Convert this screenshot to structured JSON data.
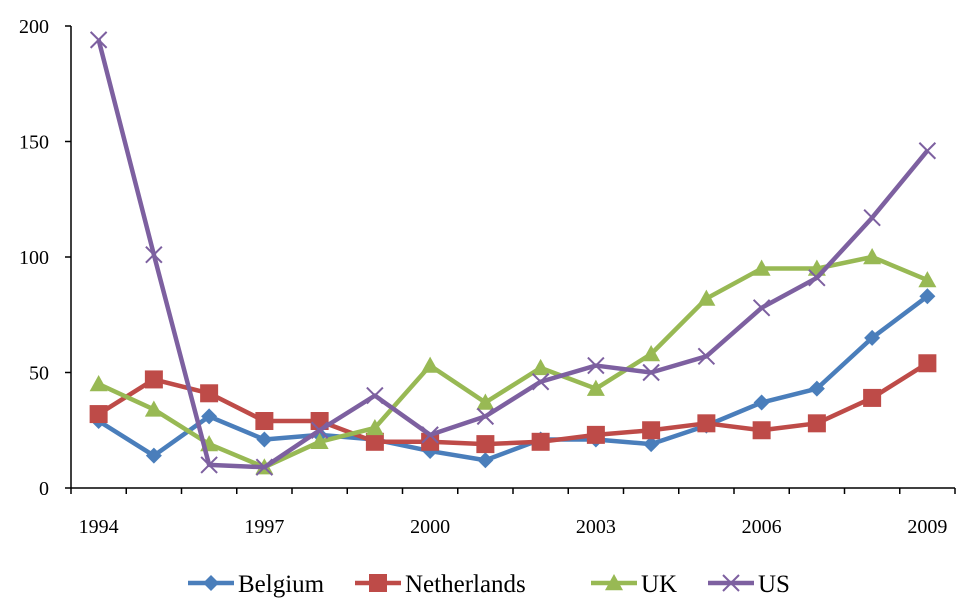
{
  "chart_data": {
    "type": "line",
    "title": "",
    "xlabel": "",
    "ylabel": "",
    "x": [
      1994,
      1995,
      1996,
      1997,
      1998,
      1999,
      2000,
      2001,
      2002,
      2003,
      2004,
      2005,
      2006,
      2007,
      2008,
      2009
    ],
    "x_tick_labels": [
      "1994",
      "1997",
      "2000",
      "2003",
      "2006",
      "2009"
    ],
    "x_tick_values": [
      1994,
      1997,
      2000,
      2003,
      2006,
      2009
    ],
    "ylim": [
      0,
      200
    ],
    "y_tick_labels": [
      "0",
      "50",
      "100",
      "150",
      "200"
    ],
    "y_tick_values": [
      0,
      50,
      100,
      150,
      200
    ],
    "grid": false,
    "legend_position": "bottom",
    "series": [
      {
        "name": "Belgium",
        "color": "#4a7ebb",
        "marker": "diamond",
        "values": [
          29,
          14,
          31,
          21,
          23,
          21,
          16,
          12,
          21,
          21,
          19,
          27,
          37,
          43,
          65,
          83
        ]
      },
      {
        "name": "Netherlands",
        "color": "#be4b48",
        "marker": "square",
        "values": [
          32,
          47,
          41,
          29,
          29,
          20,
          20,
          19,
          20,
          23,
          25,
          28,
          25,
          28,
          39,
          54
        ]
      },
      {
        "name": "UK",
        "color": "#98b954",
        "marker": "triangle",
        "values": [
          45,
          34,
          19,
          9,
          20,
          26,
          53,
          37,
          52,
          43,
          58,
          82,
          95,
          95,
          100,
          90
        ]
      },
      {
        "name": "US",
        "color": "#7d60a0",
        "marker": "x",
        "values": [
          194,
          101,
          10,
          9,
          25,
          40,
          23,
          31,
          46,
          53,
          50,
          57,
          78,
          91,
          117,
          146
        ]
      }
    ]
  }
}
